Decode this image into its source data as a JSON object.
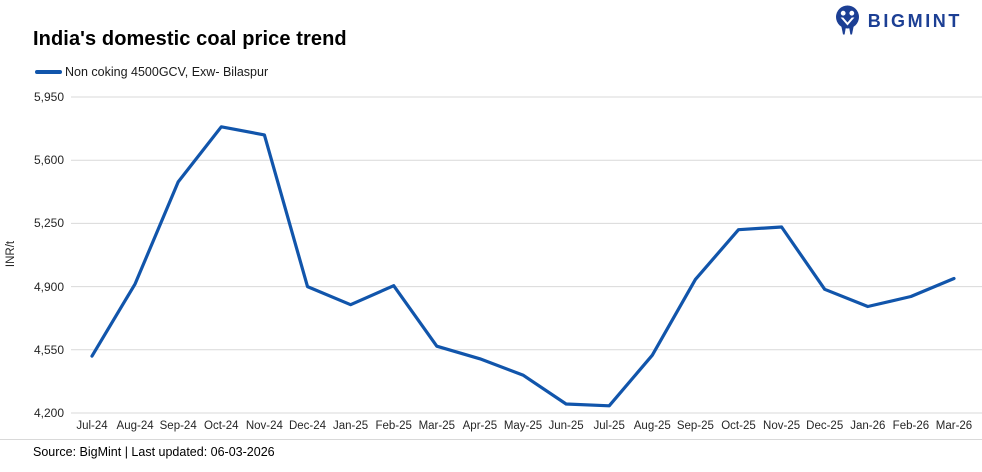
{
  "header": {
    "title": "India's domestic coal price trend",
    "logo_text": "BIGMINT",
    "logo_color": "#1c3f94"
  },
  "legend": {
    "label": "Non coking 4500GCV, Exw- Bilaspur"
  },
  "footer": {
    "text": "Source: BigMint | Last updated: 06-03-2026"
  },
  "colors": {
    "line": "#1155ab",
    "gridline": "#d9d9d9",
    "axis_text": "#262626",
    "title_text": "#000000"
  },
  "chart_data": {
    "type": "line",
    "title": "India's domestic coal price trend",
    "xlabel": "",
    "ylabel": "INR/t",
    "grid": "horizontal",
    "legend_position": "top-left",
    "ylim": [
      4200,
      5950
    ],
    "yticks": [
      5950,
      5600,
      5250,
      4900,
      4550,
      4200
    ],
    "ytick_labels": [
      "5,950",
      "5,600",
      "5,250",
      "4,900",
      "4,550",
      "4,200"
    ],
    "categories": [
      "Jul-24",
      "Aug-24",
      "Sep-24",
      "Oct-24",
      "Nov-24",
      "Dec-24",
      "Jan-25",
      "Feb-25",
      "Mar-25",
      "Apr-25",
      "May-25",
      "Jun-25",
      "Jul-25",
      "Aug-25",
      "Sep-25",
      "Oct-25",
      "Nov-25",
      "Dec-25",
      "Jan-26",
      "Feb-26",
      "Mar-26"
    ],
    "series": [
      {
        "name": "Non coking 4500GCV, Exw- Bilaspur",
        "color": "#1155ab",
        "values": [
          4515,
          4915,
          5480,
          5785,
          5740,
          4900,
          4800,
          4905,
          4570,
          4500,
          4410,
          4250,
          4240,
          4520,
          4940,
          5215,
          5230,
          4885,
          4790,
          4845,
          4945
        ]
      }
    ]
  }
}
